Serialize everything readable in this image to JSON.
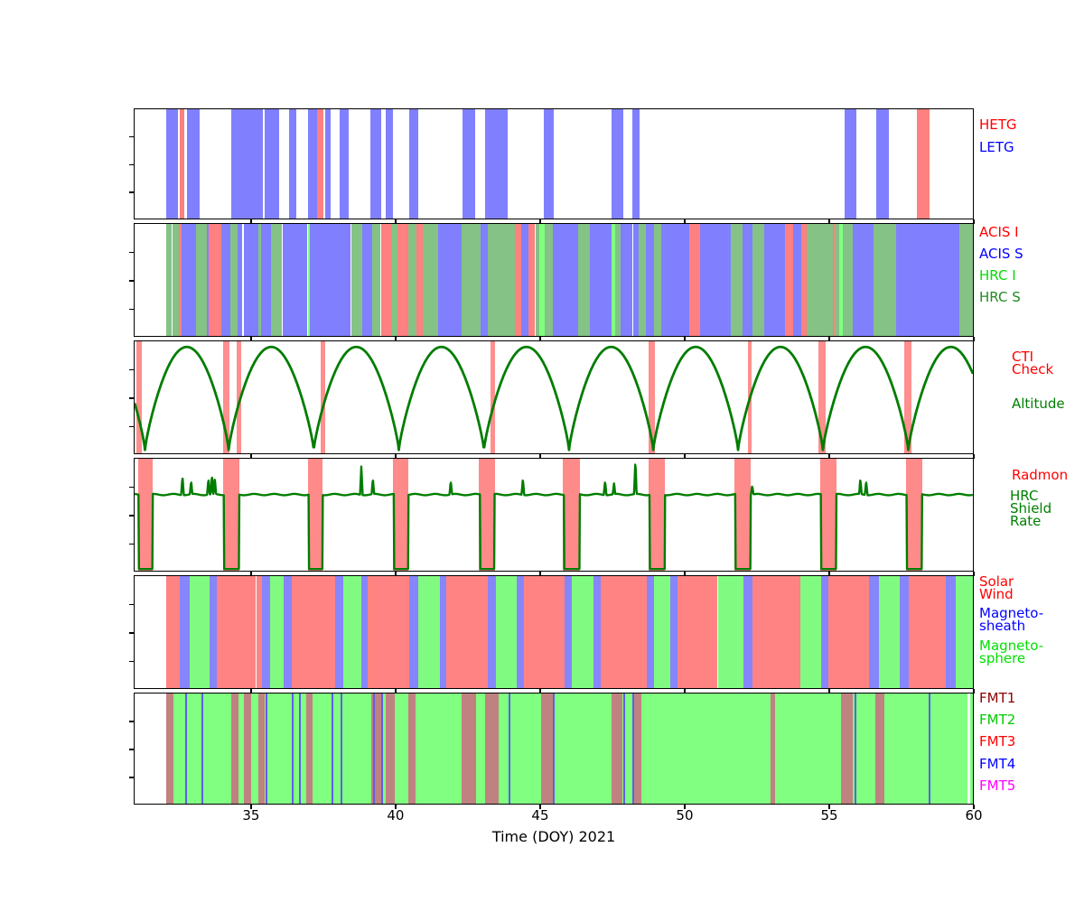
{
  "chart_data": {
    "type": "timeline",
    "axis": {
      "xlabel": "Time (DOY) 2021",
      "xticks": [
        35,
        40,
        45,
        50,
        55,
        60
      ],
      "xmin": 30.94,
      "xmax": 60
    },
    "band_colors": {
      "HETG": "#ff8080",
      "LETG": "#8080ff",
      "ACIS I": "#ff8080",
      "ACIS S": "#8080ff",
      "HRC I": "#80ff80",
      "HRC S": "#85c285",
      "CTI Check": "#ff8e8e",
      "Radmon": "#ff8a8a",
      "Solar Wind": "#ff8383",
      "Magneto-sheath": "#8686fa",
      "Magneto-sphere": "#80fa80",
      "FMT1": "#c08181",
      "FMT2": "#80ff80",
      "FMT4": "#5f5fe8",
      "line_green": "#007d00"
    },
    "panels": [
      {
        "id": "gratings",
        "labels": [
          {
            "text": "HETG",
            "color": "#ff0000"
          },
          {
            "text": "LETG",
            "color": "#0000ff"
          }
        ],
        "bands": {
          "HETG": [
            [
              32.5,
              32.66
            ],
            [
              37.25,
              37.5
            ],
            [
              58.05,
              58.5
            ]
          ],
          "LETG": [
            [
              32.05,
              32.45
            ],
            [
              32.75,
              33.2
            ],
            [
              34.3,
              35.4
            ],
            [
              35.45,
              35.95
            ],
            [
              36.3,
              36.55
            ],
            [
              36.95,
              37.25
            ],
            [
              37.55,
              37.72
            ],
            [
              38.05,
              38.35
            ],
            [
              39.1,
              39.5
            ],
            [
              39.65,
              39.9
            ],
            [
              40.45,
              40.77
            ],
            [
              42.3,
              42.75
            ],
            [
              43.1,
              43.87
            ],
            [
              45.12,
              45.46
            ],
            [
              47.47,
              47.87
            ],
            [
              48.2,
              48.45
            ],
            [
              55.55,
              55.95
            ],
            [
              56.65,
              57.1
            ]
          ]
        }
      },
      {
        "id": "instruments",
        "labels": [
          {
            "text": "ACIS I",
            "color": "#ff0000"
          },
          {
            "text": "ACIS S",
            "color": "#0000ff"
          },
          {
            "text": "HRC I",
            "color": "#00dd00"
          },
          {
            "text": "HRC S",
            "color": "#228b22"
          }
        ],
        "segments": [
          [
            32.03,
            32.21,
            "HRC S"
          ],
          [
            32.27,
            32.46,
            "HRC S"
          ],
          [
            32.46,
            32.58,
            "ACIS I"
          ],
          [
            32.58,
            33.07,
            "ACIS S"
          ],
          [
            33.07,
            33.44,
            "HRC S"
          ],
          [
            33.44,
            33.52,
            "ACIS S"
          ],
          [
            33.52,
            33.96,
            "ACIS I"
          ],
          [
            33.96,
            34.27,
            "ACIS S"
          ],
          [
            34.27,
            34.5,
            "HRC S"
          ],
          [
            34.5,
            34.67,
            "ACIS S"
          ],
          [
            34.72,
            35.24,
            "ACIS S"
          ],
          [
            35.24,
            35.31,
            "HRC S"
          ],
          [
            35.31,
            35.68,
            "ACIS S"
          ],
          [
            35.68,
            36.06,
            "HRC S"
          ],
          [
            36.06,
            36.93,
            "ACIS S"
          ],
          [
            36.96,
            37.03,
            "HRC I"
          ],
          [
            37.03,
            38.44,
            "ACIS S"
          ],
          [
            38.44,
            38.83,
            "HRC S"
          ],
          [
            38.83,
            39.17,
            "ACIS S"
          ],
          [
            39.17,
            39.46,
            "HRC S"
          ],
          [
            39.5,
            39.84,
            "ACIS I"
          ],
          [
            39.84,
            40.05,
            "HRC S"
          ],
          [
            40.05,
            40.42,
            "ACIS I"
          ],
          [
            40.42,
            40.71,
            "HRC S"
          ],
          [
            40.71,
            40.94,
            "ACIS I"
          ],
          [
            40.94,
            41.46,
            "HRC S"
          ],
          [
            41.46,
            42.27,
            "ACIS S"
          ],
          [
            42.27,
            42.92,
            "HRC S"
          ],
          [
            42.92,
            43.18,
            "ACIS S"
          ],
          [
            43.18,
            44.12,
            "HRC S"
          ],
          [
            44.12,
            44.35,
            "ACIS I"
          ],
          [
            44.35,
            44.6,
            "ACIS S"
          ],
          [
            44.6,
            44.81,
            "ACIS I"
          ],
          [
            44.85,
            44.98,
            "HRC S"
          ],
          [
            44.98,
            45.15,
            "HRC I"
          ],
          [
            45.15,
            45.43,
            "HRC S"
          ],
          [
            45.45,
            46.3,
            "ACIS S"
          ],
          [
            46.3,
            46.72,
            "HRC S"
          ],
          [
            46.72,
            47.46,
            "ACIS S"
          ],
          [
            47.46,
            47.6,
            "HRC I"
          ],
          [
            47.6,
            47.8,
            "HRC S"
          ],
          [
            47.8,
            48.18,
            "ACIS S"
          ],
          [
            48.22,
            48.4,
            "ACIS S"
          ],
          [
            48.4,
            48.65,
            "HRC S"
          ],
          [
            48.65,
            48.94,
            "ACIS S"
          ],
          [
            48.94,
            49.2,
            "HRC S"
          ],
          [
            49.2,
            50.17,
            "ACIS S"
          ],
          [
            50.17,
            50.53,
            "ACIS I"
          ],
          [
            50.53,
            51.6,
            "ACIS S"
          ],
          [
            51.6,
            52.0,
            "HRC S"
          ],
          [
            52.0,
            52.35,
            "ACIS S"
          ],
          [
            52.35,
            52.77,
            "HRC S"
          ],
          [
            52.77,
            53.5,
            "ACIS S"
          ],
          [
            53.5,
            53.77,
            "ACIS I"
          ],
          [
            53.77,
            54.05,
            "ACIS S"
          ],
          [
            54.05,
            54.23,
            "ACIS I"
          ],
          [
            54.23,
            55.15,
            "HRC S"
          ],
          [
            55.15,
            55.22,
            "ACIS I"
          ],
          [
            55.22,
            55.38,
            "HRC S"
          ],
          [
            55.38,
            55.48,
            "HRC I"
          ],
          [
            55.48,
            55.82,
            "HRC S"
          ],
          [
            55.84,
            56.57,
            "ACIS S"
          ],
          [
            56.57,
            57.35,
            "HRC S"
          ],
          [
            57.35,
            59.54,
            "ACIS S"
          ],
          [
            59.54,
            60.0,
            "HRC S"
          ]
        ]
      },
      {
        "id": "cti-altitude",
        "labels": [
          {
            "text": "CTI\nCheck",
            "color": "#ff0000"
          },
          {
            "text": "Altitude",
            "color": "#008000"
          }
        ],
        "cti_bands": [
          [
            30.99,
            31.19
          ],
          [
            34.0,
            34.23
          ],
          [
            34.47,
            34.63
          ],
          [
            37.4,
            37.56
          ],
          [
            43.29,
            43.45
          ],
          [
            48.76,
            48.97
          ],
          [
            52.2,
            52.32
          ],
          [
            54.65,
            54.9
          ],
          [
            57.62,
            57.88
          ]
        ],
        "altitude": {
          "perigees": [
            28.35,
            31.3,
            34.2,
            37.15,
            40.1,
            43.05,
            46.0,
            48.92,
            51.86,
            54.8,
            57.76,
            60.71
          ],
          "peak": 0.95,
          "base": 0.03
        }
      },
      {
        "id": "radmon-shield",
        "labels": [
          {
            "text": "Radmon",
            "color": "#ff0000"
          },
          {
            "text": "HRC\nShield\nRate",
            "color": "#008000"
          }
        ],
        "radmon_bands": [
          [
            31.05,
            31.57
          ],
          [
            34.0,
            34.56
          ],
          [
            36.94,
            37.46
          ],
          [
            39.9,
            40.43
          ],
          [
            42.88,
            43.42
          ],
          [
            45.79,
            46.37
          ],
          [
            48.76,
            49.33
          ],
          [
            51.73,
            52.3
          ],
          [
            54.7,
            55.27
          ],
          [
            57.67,
            58.24
          ]
        ],
        "shield": {
          "baseline": 0.68,
          "low": 0.015,
          "spikes": [
            [
              32.6,
              0.84
            ],
            [
              32.9,
              0.8
            ],
            [
              33.5,
              0.82
            ],
            [
              33.62,
              0.85
            ],
            [
              33.72,
              0.83
            ],
            [
              38.8,
              0.93
            ],
            [
              39.2,
              0.82
            ],
            [
              41.9,
              0.8
            ],
            [
              44.4,
              0.82
            ],
            [
              47.25,
              0.8
            ],
            [
              47.56,
              0.78
            ],
            [
              48.3,
              0.98
            ],
            [
              52.35,
              0.76
            ],
            [
              55.15,
              0.97
            ],
            [
              56.1,
              0.82
            ],
            [
              56.3,
              0.8
            ],
            [
              58.1,
              0.83
            ]
          ]
        }
      },
      {
        "id": "solar-wind-regions",
        "labels": [
          {
            "text": "Solar\nWind",
            "color": "#ff0000"
          },
          {
            "text": "Magneto-\nsheath",
            "color": "#0000ff"
          },
          {
            "text": "Magneto-\nsphere",
            "color": "#00e000"
          }
        ],
        "segments": [
          [
            32.03,
            32.5,
            "Solar Wind"
          ],
          [
            32.5,
            32.84,
            "Magneto-sheath"
          ],
          [
            32.84,
            33.53,
            "Magneto-sphere"
          ],
          [
            33.53,
            33.78,
            "Magneto-sheath"
          ],
          [
            33.78,
            35.14,
            "Solar Wind"
          ],
          [
            35.18,
            35.35,
            "Solar Wind"
          ],
          [
            35.35,
            35.63,
            "Magneto-sheath"
          ],
          [
            35.63,
            36.1,
            "Magneto-sphere"
          ],
          [
            36.1,
            36.38,
            "Magneto-sheath"
          ],
          [
            36.38,
            37.88,
            "Solar Wind"
          ],
          [
            37.88,
            38.16,
            "Magneto-sheath"
          ],
          [
            38.16,
            38.8,
            "Magneto-sphere"
          ],
          [
            38.8,
            39.03,
            "Magneto-sheath"
          ],
          [
            39.03,
            40.47,
            "Solar Wind"
          ],
          [
            40.47,
            40.78,
            "Magneto-sheath"
          ],
          [
            40.78,
            41.53,
            "Magneto-sphere"
          ],
          [
            41.53,
            41.75,
            "Magneto-sheath"
          ],
          [
            41.75,
            43.19,
            "Solar Wind"
          ],
          [
            43.19,
            43.47,
            "Magneto-sheath"
          ],
          [
            43.47,
            44.19,
            "Magneto-sphere"
          ],
          [
            44.19,
            44.44,
            "Magneto-sheath"
          ],
          [
            44.44,
            45.84,
            "Solar Wind"
          ],
          [
            45.84,
            46.1,
            "Magneto-sheath"
          ],
          [
            46.1,
            46.84,
            "Magneto-sphere"
          ],
          [
            46.84,
            47.1,
            "Magneto-sheath"
          ],
          [
            47.1,
            48.7,
            "Solar Wind"
          ],
          [
            48.7,
            48.94,
            "Magneto-sheath"
          ],
          [
            48.94,
            49.5,
            "Magneto-sphere"
          ],
          [
            49.5,
            49.75,
            "Magneto-sheath"
          ],
          [
            49.75,
            51.14,
            "Solar Wind"
          ],
          [
            51.18,
            52.06,
            "Magneto-sphere"
          ],
          [
            52.06,
            52.35,
            "Magneto-sheath"
          ],
          [
            52.35,
            54.03,
            "Solar Wind"
          ],
          [
            54.03,
            54.75,
            "Magneto-sphere"
          ],
          [
            54.75,
            55.0,
            "Magneto-sheath"
          ],
          [
            55.0,
            56.4,
            "Solar Wind"
          ],
          [
            56.4,
            56.73,
            "Magneto-sheath"
          ],
          [
            56.73,
            57.46,
            "Magneto-sphere"
          ],
          [
            57.46,
            57.79,
            "Magneto-sheath"
          ],
          [
            57.79,
            59.07,
            "Solar Wind"
          ],
          [
            59.07,
            59.42,
            "Magneto-sheath"
          ],
          [
            59.42,
            60.0,
            "Magneto-sphere"
          ]
        ]
      },
      {
        "id": "fmt",
        "labels": [
          {
            "text": "FMT1",
            "color": "#8b0000"
          },
          {
            "text": "FMT2",
            "color": "#00cc00"
          },
          {
            "text": "FMT3",
            "color": "#ff0000"
          },
          {
            "text": "FMT4",
            "color": "#0000ff"
          },
          {
            "text": "FMT5",
            "color": "#ff00ff"
          }
        ],
        "fmt2_base": [
          [
            32.03,
            59.8
          ],
          [
            59.92,
            60.0
          ]
        ],
        "fmt1_bands": [
          [
            32.03,
            32.28
          ],
          [
            34.28,
            34.53
          ],
          [
            34.72,
            34.97
          ],
          [
            35.22,
            35.46
          ],
          [
            36.88,
            37.1
          ],
          [
            39.15,
            39.5
          ],
          [
            39.66,
            39.96
          ],
          [
            40.43,
            40.69
          ],
          [
            42.28,
            42.77
          ],
          [
            43.08,
            43.55
          ],
          [
            45.03,
            45.43
          ],
          [
            47.47,
            47.85
          ],
          [
            48.2,
            48.5
          ],
          [
            52.97,
            53.13
          ],
          [
            55.43,
            55.84
          ],
          [
            56.63,
            56.94
          ]
        ],
        "fmt4_lines": [
          32.7,
          33.27,
          35.47,
          36.4,
          36.63,
          37.77,
          38.08,
          39.2,
          39.5,
          43.9,
          45.45,
          47.88,
          48.18,
          55.9,
          58.47
        ]
      }
    ]
  }
}
